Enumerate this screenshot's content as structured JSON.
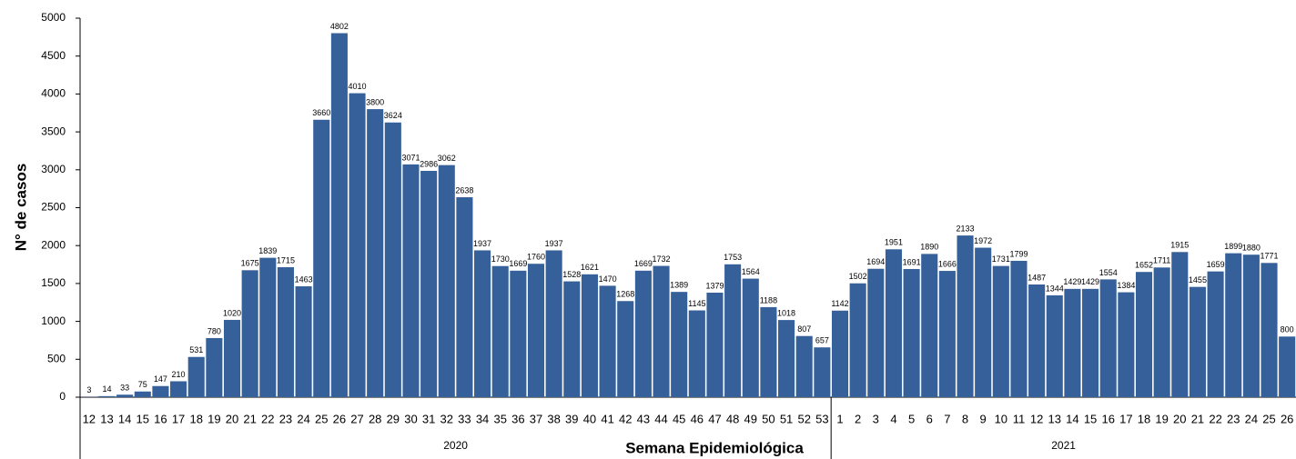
{
  "chart_data": {
    "type": "bar",
    "y_label": "N° de casos",
    "x_label": "Semana Epidemiológica",
    "color": "#35609a",
    "groups": [
      {
        "label": "2020",
        "categories": [
          "12",
          "13",
          "14",
          "15",
          "16",
          "17",
          "18",
          "19",
          "20",
          "21",
          "22",
          "23",
          "24",
          "25",
          "26",
          "27",
          "28",
          "29",
          "30",
          "31",
          "32",
          "33",
          "34",
          "35",
          "36",
          "37",
          "38",
          "39",
          "40",
          "41",
          "42",
          "43",
          "44",
          "45",
          "46",
          "47",
          "48",
          "49",
          "50",
          "51",
          "52",
          "53"
        ]
      },
      {
        "label": "2021",
        "categories": [
          "1",
          "2",
          "3",
          "4",
          "5",
          "6",
          "7",
          "8",
          "9",
          "10",
          "11",
          "12",
          "13",
          "14",
          "15",
          "16",
          "17",
          "18",
          "19",
          "20",
          "21",
          "22",
          "23",
          "24",
          "25",
          "26"
        ]
      }
    ],
    "values": [
      3,
      14,
      33,
      75,
      147,
      210,
      531,
      780,
      1020,
      1675,
      1839,
      1715,
      1463,
      3660,
      4802,
      4010,
      3800,
      3624,
      3071,
      2986,
      3062,
      2638,
      1937,
      1730,
      1669,
      1760,
      1937,
      1528,
      1621,
      1470,
      1268,
      1669,
      1732,
      1389,
      1145,
      1379,
      1753,
      1564,
      1188,
      1018,
      807,
      657,
      1142,
      1502,
      1694,
      1951,
      1691,
      1890,
      1666,
      2133,
      1972,
      1731,
      1799,
      1487,
      1344,
      1429,
      1429,
      1554,
      1384,
      1652,
      1711,
      1915,
      1455,
      1659,
      1899,
      1880,
      1771,
      800
    ],
    "ylim": [
      0,
      5000
    ],
    "yticks": [
      0,
      500,
      1000,
      1500,
      2000,
      2500,
      3000,
      3500,
      4000,
      4500,
      5000
    ],
    "grid": false
  }
}
